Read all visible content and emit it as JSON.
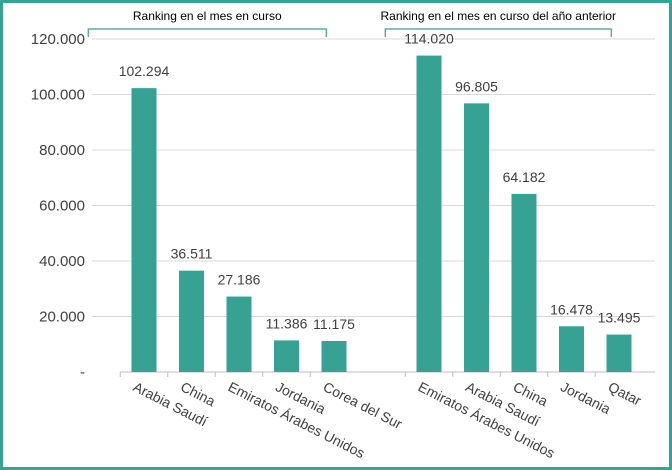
{
  "chart_data": {
    "type": "bar",
    "ylim": [
      0,
      120000
    ],
    "yticks": [
      {
        "value": 0,
        "label": "-"
      },
      {
        "value": 20000,
        "label": "20.000"
      },
      {
        "value": 40000,
        "label": "40.000"
      },
      {
        "value": 60000,
        "label": "60.000"
      },
      {
        "value": 80000,
        "label": "80.000"
      },
      {
        "value": 100000,
        "label": "100.000"
      },
      {
        "value": 120000,
        "label": "120.000"
      }
    ],
    "grid": true,
    "groups": [
      {
        "title": "Ranking en el mes en curso",
        "categories": [
          "Arabia Saudí",
          "China",
          "Emiratos Árabes Unidos",
          "Jordania",
          "Corea del Sur"
        ],
        "values": [
          102294,
          36511,
          27186,
          11386,
          11175
        ],
        "labels": [
          "102.294",
          "36.511",
          "27.186",
          "11.386",
          "11.175"
        ]
      },
      {
        "title": "Ranking en el mes en curso del año anterior",
        "categories": [
          "Emiratos Árabes Unidos",
          "Arabia Saudí",
          "China",
          "Jordania",
          "Qatar"
        ],
        "values": [
          114020,
          96805,
          64182,
          16478,
          13495
        ],
        "labels": [
          "114.020",
          "96.805",
          "64.182",
          "16.478",
          "13.495"
        ]
      }
    ],
    "colors": {
      "bar": "#35a293",
      "frame": "#35a293",
      "grid": "#d9d9d9"
    }
  }
}
